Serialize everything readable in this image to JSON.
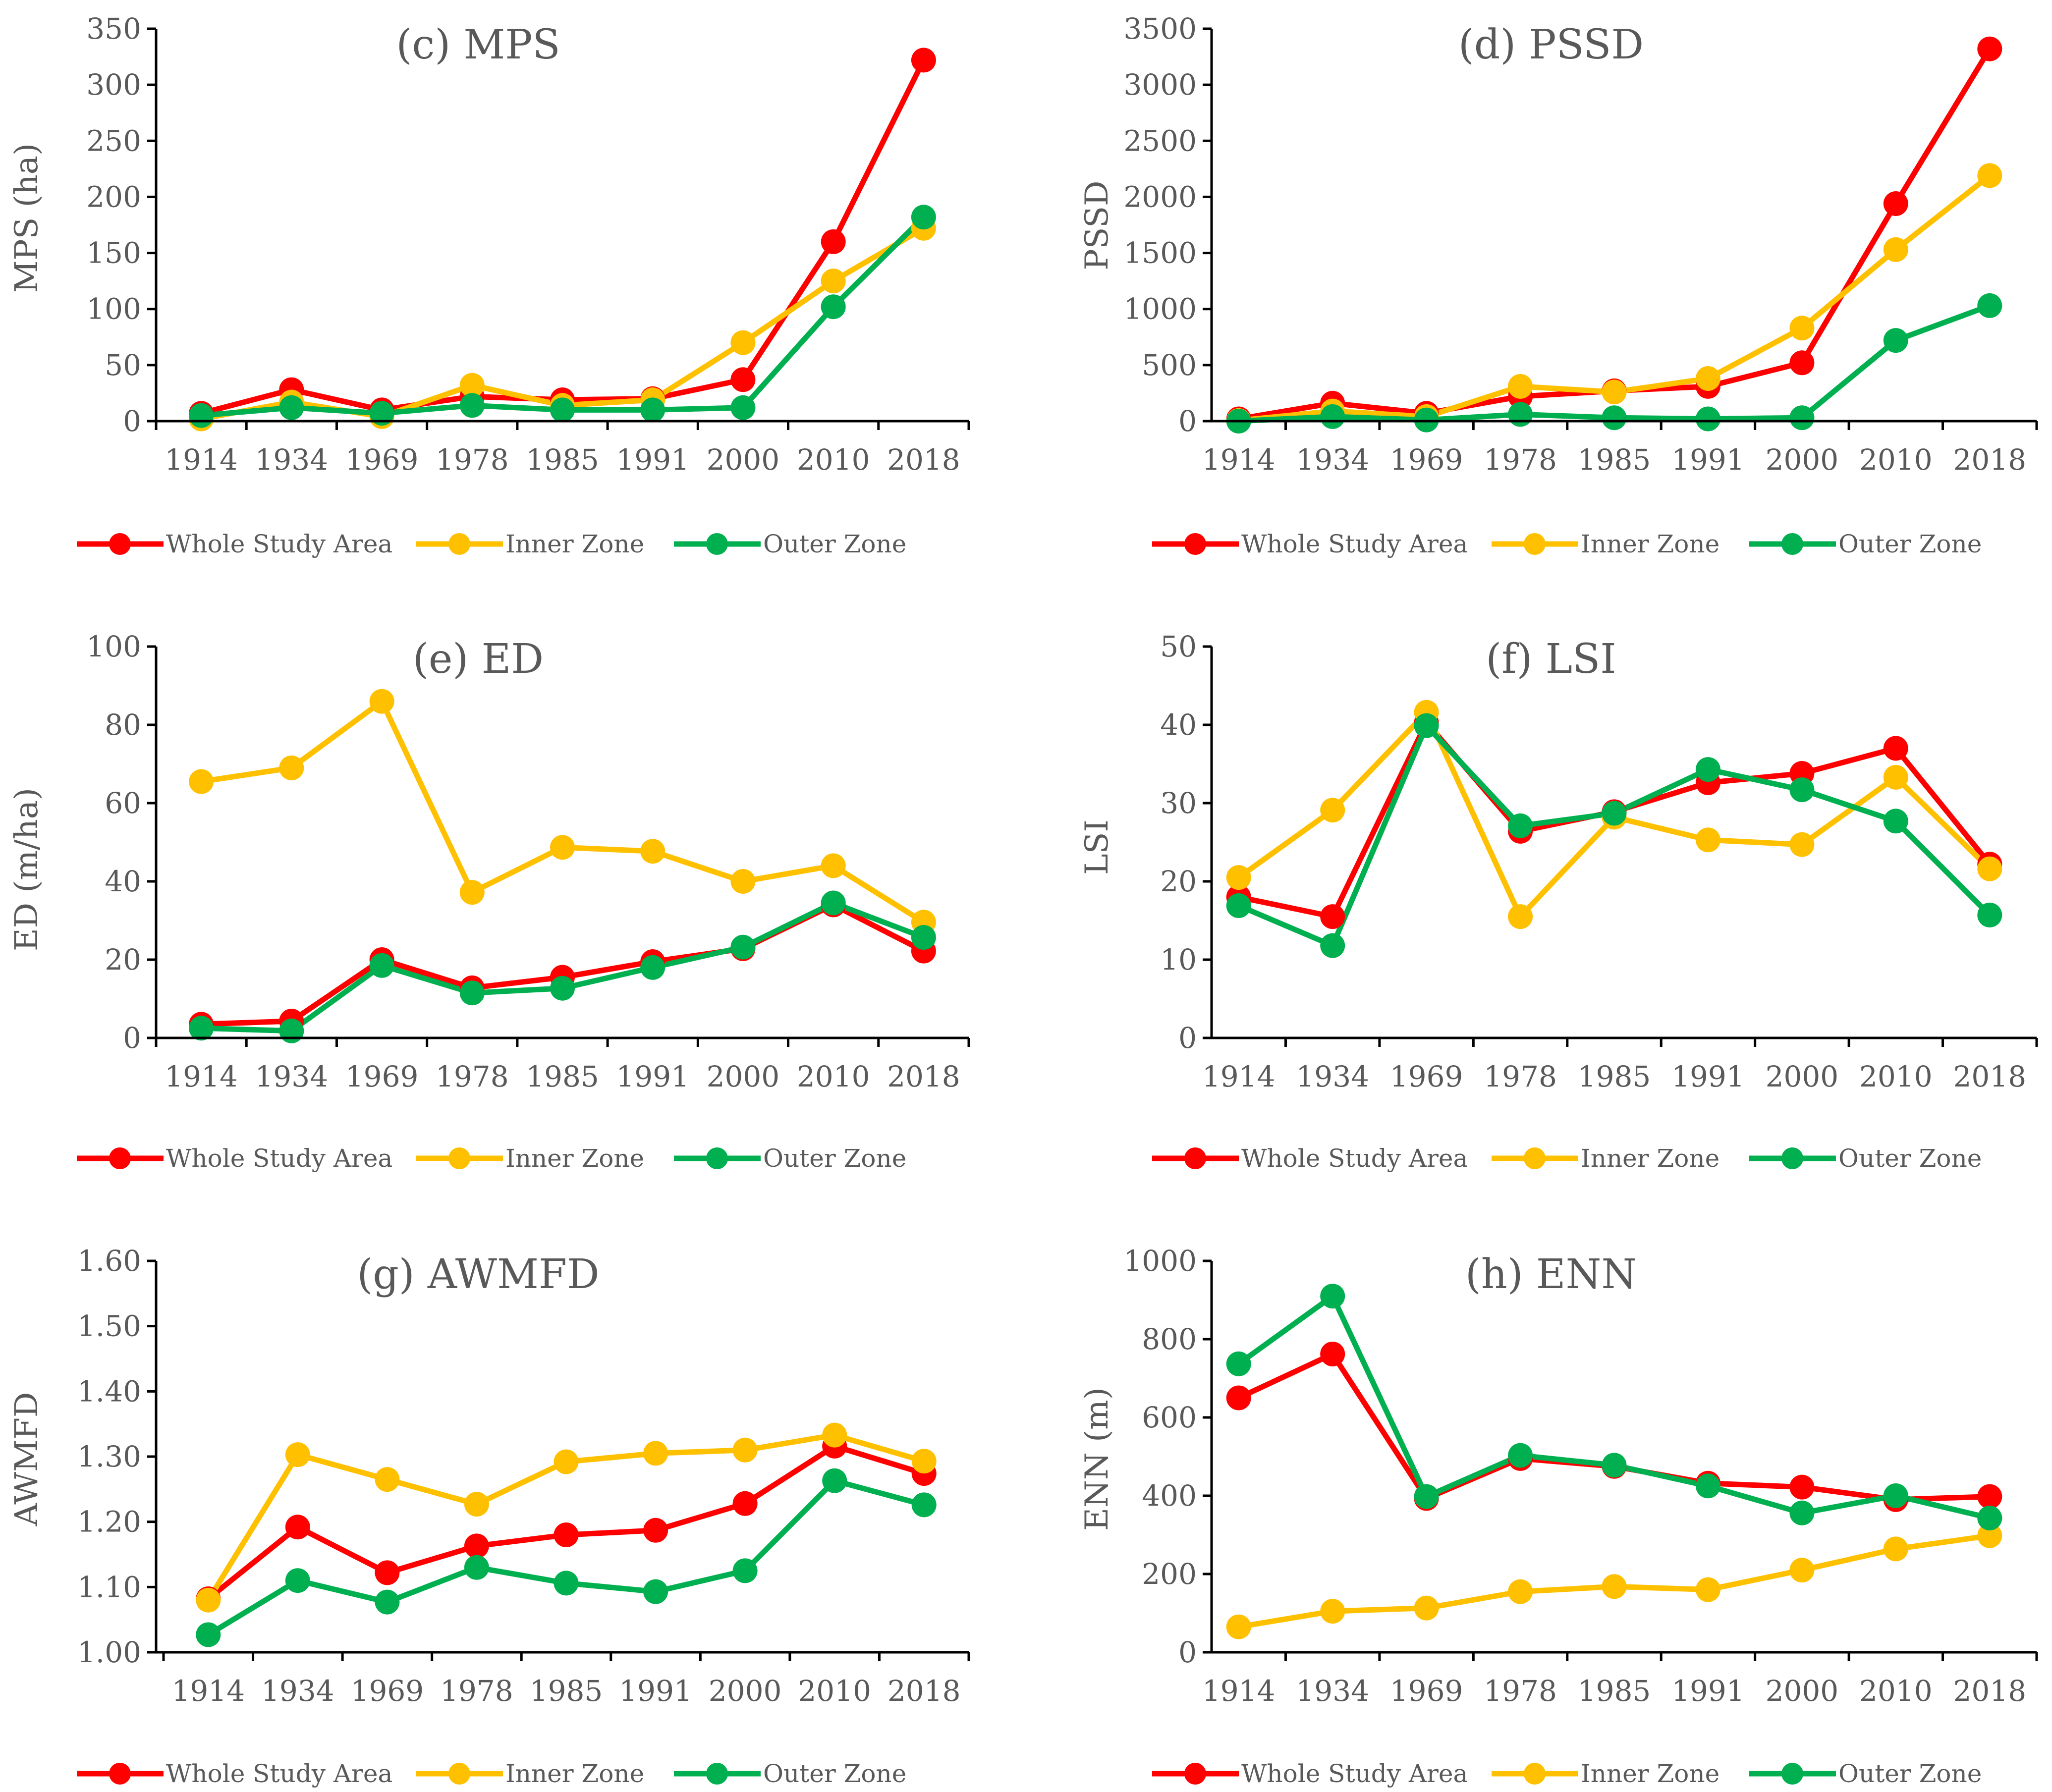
{
  "colors": {
    "whole": "#ff0000",
    "inner": "#ffc000",
    "outer": "#00b050",
    "text": "#595959",
    "axis": "#000000"
  },
  "legend": [
    "Whole Study Area",
    "Inner Zone",
    "Outer Zone"
  ],
  "chart_data": [
    {
      "type": "line",
      "title": "(c) MPS",
      "xlabel": "",
      "ylabel": "MPS (ha)",
      "categories": [
        "1914",
        "1934",
        "1969",
        "1978",
        "1985",
        "1991",
        "2000",
        "2010",
        "2018"
      ],
      "ylim": [
        0,
        350
      ],
      "yticks": [
        "0",
        "50",
        "100",
        "150",
        "200",
        "250",
        "300",
        "350"
      ],
      "series": [
        {
          "name": "Whole Study Area",
          "values": [
            7,
            28,
            10,
            22,
            19,
            20,
            37,
            160,
            322
          ]
        },
        {
          "name": "Inner Zone",
          "values": [
            2,
            17,
            4,
            32,
            14,
            19,
            70,
            125,
            172
          ]
        },
        {
          "name": "Outer Zone",
          "values": [
            5,
            12,
            7,
            14,
            10,
            10,
            12,
            102,
            182
          ]
        }
      ]
    },
    {
      "type": "line",
      "title": "(d) PSSD",
      "xlabel": "",
      "ylabel": "PSSD",
      "categories": [
        "1914",
        "1934",
        "1969",
        "1978",
        "1985",
        "1991",
        "2000",
        "2010",
        "2018"
      ],
      "ylim": [
        0,
        3500
      ],
      "yticks": [
        "0",
        "500",
        "1000",
        "1500",
        "2000",
        "2500",
        "3000",
        "3500"
      ],
      "series": [
        {
          "name": "Whole Study Area",
          "values": [
            20,
            160,
            70,
            220,
            270,
            310,
            520,
            1940,
            3320
          ]
        },
        {
          "name": "Inner Zone",
          "values": [
            5,
            90,
            40,
            310,
            260,
            380,
            830,
            1530,
            2190
          ]
        },
        {
          "name": "Outer Zone",
          "values": [
            0,
            40,
            10,
            60,
            30,
            20,
            30,
            720,
            1030
          ]
        }
      ]
    },
    {
      "type": "line",
      "title": "(e) ED",
      "xlabel": "",
      "ylabel": "ED (m/ha)",
      "categories": [
        "1914",
        "1934",
        "1969",
        "1978",
        "1985",
        "1991",
        "2000",
        "2010",
        "2018"
      ],
      "ylim": [
        0,
        100
      ],
      "yticks": [
        "0",
        "20",
        "40",
        "60",
        "80",
        "100"
      ],
      "series": [
        {
          "name": "Whole Study Area",
          "values": [
            3.5,
            4.3,
            20,
            12.8,
            15.5,
            19.5,
            22.8,
            34,
            22.2
          ]
        },
        {
          "name": "Inner Zone",
          "values": [
            65.5,
            69,
            86,
            37.2,
            48.7,
            47.7,
            40,
            44,
            29.6
          ]
        },
        {
          "name": "Outer Zone",
          "values": [
            2.5,
            1.8,
            18.5,
            11.5,
            12.7,
            18,
            23.2,
            34.5,
            25.7
          ]
        }
      ]
    },
    {
      "type": "line",
      "title": "(f) LSI",
      "xlabel": "",
      "ylabel": "LSI",
      "categories": [
        "1914",
        "1934",
        "1969",
        "1978",
        "1985",
        "1991",
        "2000",
        "2010",
        "2018"
      ],
      "ylim": [
        0,
        50
      ],
      "yticks": [
        "0",
        "10",
        "20",
        "30",
        "40",
        "50"
      ],
      "series": [
        {
          "name": "Whole Study Area",
          "values": [
            18,
            15.5,
            40.3,
            26.4,
            28.9,
            32.6,
            33.8,
            37,
            22.2
          ]
        },
        {
          "name": "Inner Zone",
          "values": [
            20.5,
            29.1,
            41.6,
            15.5,
            28.2,
            25.3,
            24.7,
            33.3,
            21.6
          ]
        },
        {
          "name": "Outer Zone",
          "values": [
            16.9,
            11.8,
            39.9,
            27.1,
            28.7,
            34.3,
            31.7,
            27.7,
            15.7
          ]
        }
      ]
    },
    {
      "type": "line",
      "title": "(g) AWMFD",
      "xlabel": "",
      "ylabel": "AWMFD",
      "categories": [
        "1914",
        "1934",
        "1969",
        "1978",
        "1985",
        "1991",
        "2000",
        "2010",
        "2018"
      ],
      "ylim": [
        1.0,
        1.6
      ],
      "yticks": [
        "1.00",
        "1.10",
        "1.20",
        "1.30",
        "1.40",
        "1.50",
        "1.60"
      ],
      "series": [
        {
          "name": "Whole Study Area",
          "values": [
            1.082,
            1.192,
            1.122,
            1.163,
            1.18,
            1.187,
            1.228,
            1.316,
            1.274
          ]
        },
        {
          "name": "Inner Zone",
          "values": [
            1.08,
            1.303,
            1.265,
            1.227,
            1.292,
            1.305,
            1.31,
            1.333,
            1.293
          ]
        },
        {
          "name": "Outer Zone",
          "values": [
            1.027,
            1.11,
            1.077,
            1.13,
            1.106,
            1.093,
            1.125,
            1.263,
            1.226
          ]
        }
      ]
    },
    {
      "type": "line",
      "title": "(h) ENN",
      "xlabel": "",
      "ylabel": "ENN (m)",
      "categories": [
        "1914",
        "1934",
        "1969",
        "1978",
        "1985",
        "1991",
        "2000",
        "2010",
        "2018"
      ],
      "ylim": [
        0,
        1000
      ],
      "yticks": [
        "0",
        "200",
        "400",
        "600",
        "800",
        "1000"
      ],
      "series": [
        {
          "name": "Whole Study Area",
          "values": [
            650,
            762,
            393,
            495,
            475,
            432,
            422,
            390,
            398
          ]
        },
        {
          "name": "Inner Zone",
          "values": [
            65,
            105,
            113,
            155,
            168,
            160,
            210,
            264,
            298
          ]
        },
        {
          "name": "Outer Zone",
          "values": [
            737,
            910,
            398,
            503,
            478,
            425,
            356,
            400,
            343
          ]
        }
      ]
    }
  ]
}
